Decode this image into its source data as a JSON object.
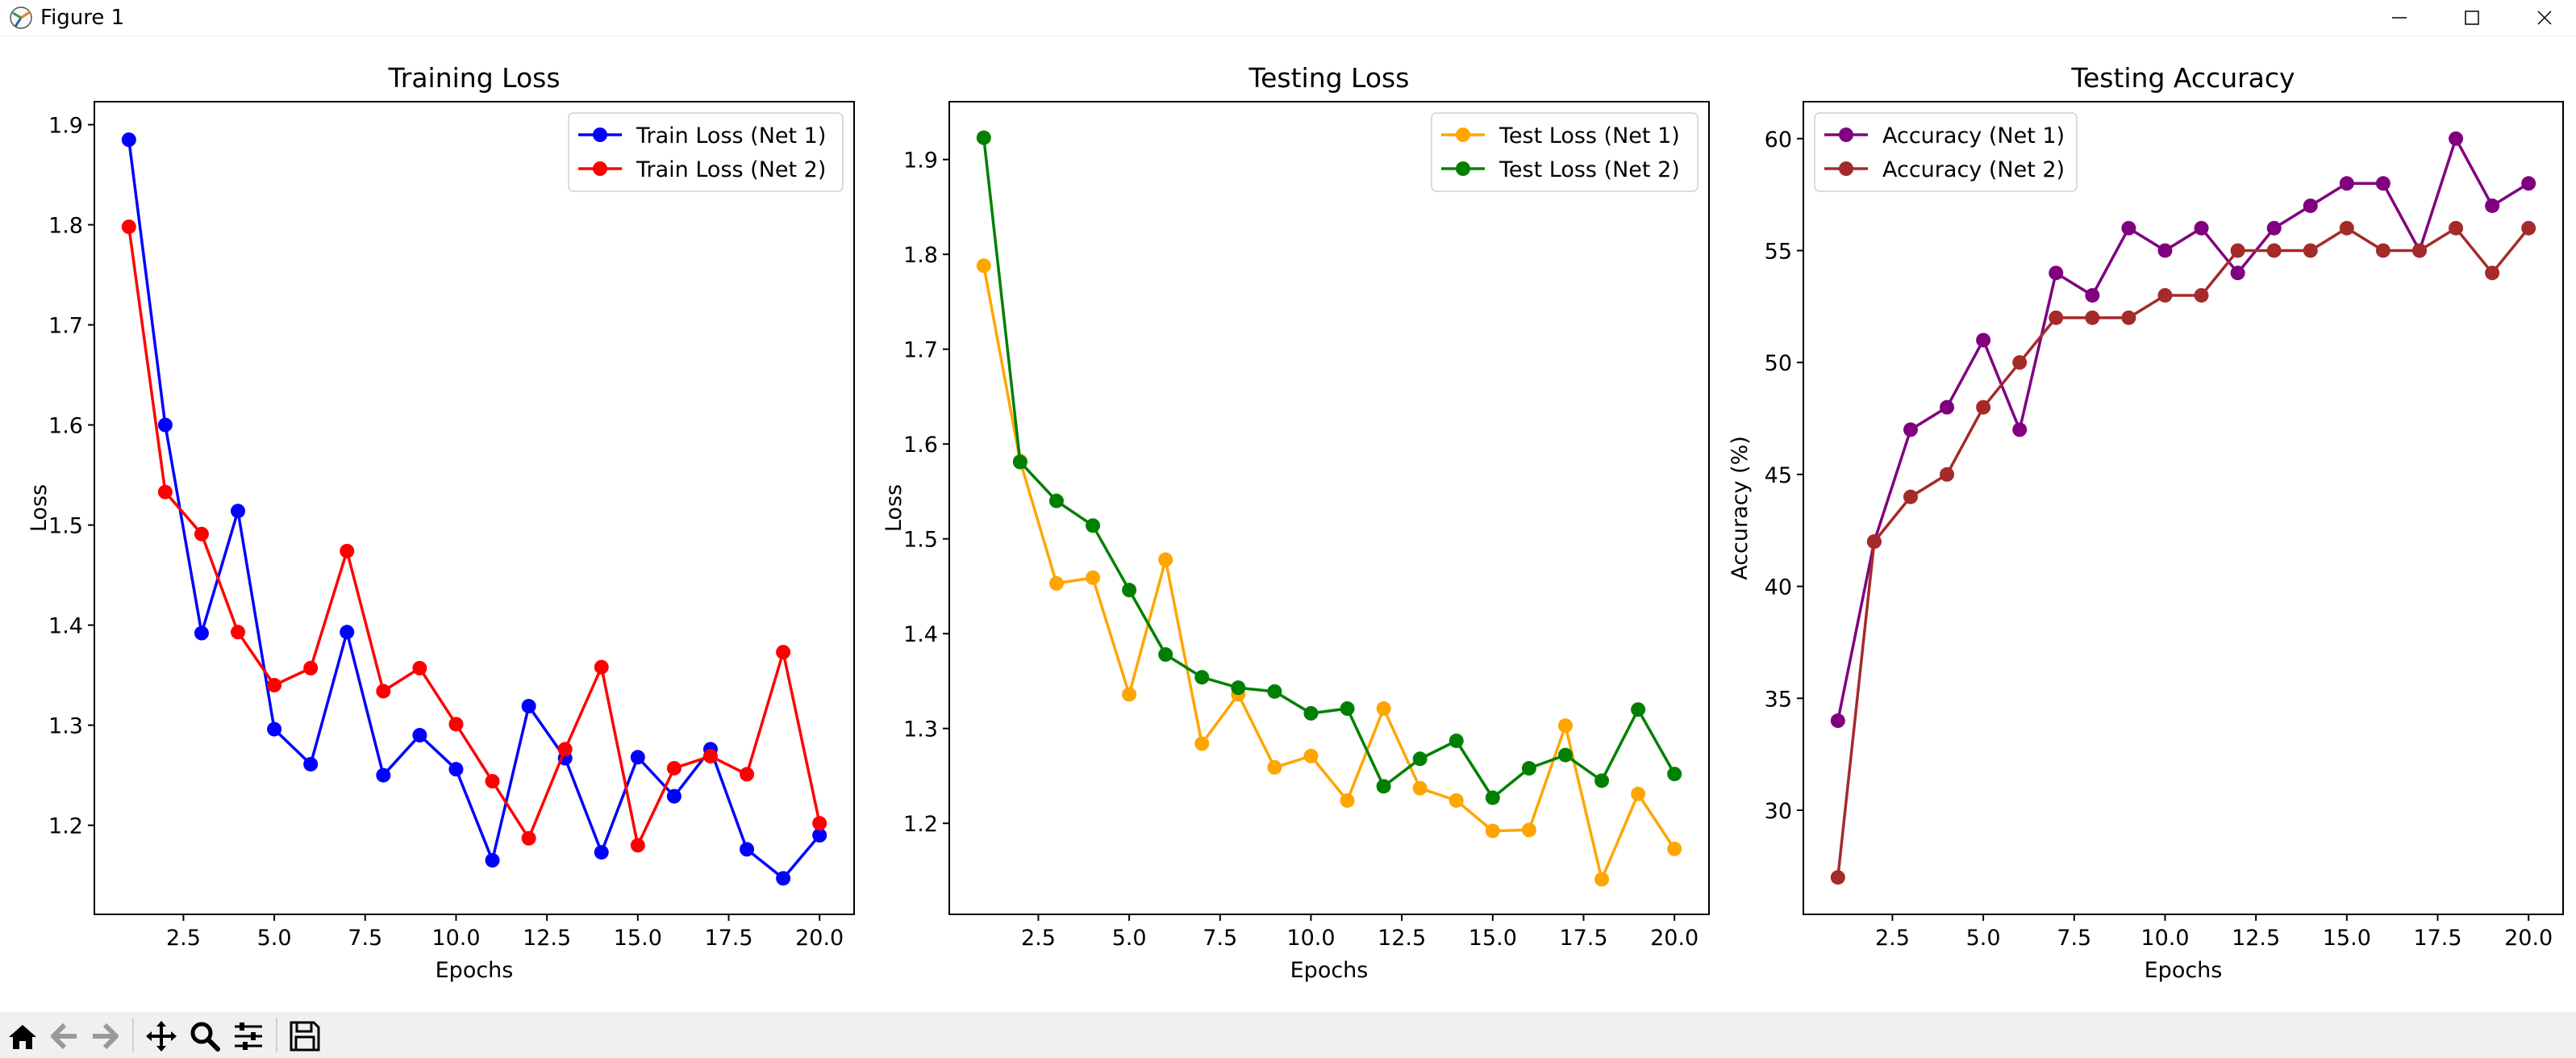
{
  "window": {
    "title": "Figure 1"
  },
  "toolbar": {
    "icons": [
      "home-icon",
      "back-icon",
      "forward-icon",
      "pan-icon",
      "zoom-icon",
      "configure-subplots-icon",
      "save-icon"
    ]
  },
  "chart_data": [
    {
      "type": "line",
      "title": "Training Loss",
      "xlabel": "Epochs",
      "ylabel": "Loss",
      "xlim": [
        0.05,
        20.95
      ],
      "ylim": [
        1.111,
        1.923
      ],
      "xticks": [
        2.5,
        5.0,
        7.5,
        10.0,
        12.5,
        15.0,
        17.5,
        20.0
      ],
      "xtick_labels": [
        "2.5",
        "5.0",
        "7.5",
        "10.0",
        "12.5",
        "15.0",
        "17.5",
        "20.0"
      ],
      "yticks": [
        1.2,
        1.3,
        1.4,
        1.5,
        1.6,
        1.7,
        1.8,
        1.9
      ],
      "ytick_labels": [
        "1.2",
        "1.3",
        "1.4",
        "1.5",
        "1.6",
        "1.7",
        "1.8",
        "1.9"
      ],
      "legend_position": "upper right",
      "x": [
        1,
        2,
        3,
        4,
        5,
        6,
        7,
        8,
        9,
        10,
        11,
        12,
        13,
        14,
        15,
        16,
        17,
        18,
        19,
        20
      ],
      "series": [
        {
          "name": "Train Loss (Net 1)",
          "color": "#0000ff",
          "values": [
            1.885,
            1.6,
            1.392,
            1.514,
            1.296,
            1.261,
            1.393,
            1.25,
            1.29,
            1.256,
            1.165,
            1.319,
            1.267,
            1.173,
            1.268,
            1.229,
            1.276,
            1.176,
            1.147,
            1.19
          ]
        },
        {
          "name": "Train Loss (Net 2)",
          "color": "#ff0000",
          "values": [
            1.798,
            1.533,
            1.491,
            1.393,
            1.34,
            1.357,
            1.474,
            1.334,
            1.357,
            1.301,
            1.244,
            1.187,
            1.276,
            1.358,
            1.18,
            1.257,
            1.269,
            1.251,
            1.373,
            1.202
          ]
        }
      ]
    },
    {
      "type": "line",
      "title": "Testing Loss",
      "xlabel": "Epochs",
      "ylabel": "Loss",
      "xlim": [
        0.05,
        20.95
      ],
      "ylim": [
        1.104,
        1.961
      ],
      "xticks": [
        2.5,
        5.0,
        7.5,
        10.0,
        12.5,
        15.0,
        17.5,
        20.0
      ],
      "xtick_labels": [
        "2.5",
        "5.0",
        "7.5",
        "10.0",
        "12.5",
        "15.0",
        "17.5",
        "20.0"
      ],
      "yticks": [
        1.2,
        1.3,
        1.4,
        1.5,
        1.6,
        1.7,
        1.8,
        1.9
      ],
      "ytick_labels": [
        "1.2",
        "1.3",
        "1.4",
        "1.5",
        "1.6",
        "1.7",
        "1.8",
        "1.9"
      ],
      "legend_position": "upper right",
      "x": [
        1,
        2,
        3,
        4,
        5,
        6,
        7,
        8,
        9,
        10,
        11,
        12,
        13,
        14,
        15,
        16,
        17,
        18,
        19,
        20
      ],
      "series": [
        {
          "name": "Test Loss (Net 1)",
          "color": "#ffa500",
          "values": [
            1.788,
            1.582,
            1.453,
            1.459,
            1.336,
            1.478,
            1.284,
            1.336,
            1.259,
            1.271,
            1.224,
            1.321,
            1.237,
            1.224,
            1.192,
            1.193,
            1.303,
            1.141,
            1.231,
            1.173
          ]
        },
        {
          "name": "Test Loss (Net 2)",
          "color": "#008000",
          "values": [
            1.923,
            1.581,
            1.54,
            1.514,
            1.446,
            1.378,
            1.354,
            1.343,
            1.339,
            1.316,
            1.321,
            1.239,
            1.268,
            1.287,
            1.227,
            1.258,
            1.272,
            1.245,
            1.32,
            1.252
          ]
        }
      ]
    },
    {
      "type": "line",
      "title": "Testing Accuracy",
      "xlabel": "Epochs",
      "ylabel": "Accuracy (%)",
      "xlim": [
        0.05,
        20.95
      ],
      "ylim": [
        25.35,
        61.65
      ],
      "xticks": [
        2.5,
        5.0,
        7.5,
        10.0,
        12.5,
        15.0,
        17.5,
        20.0
      ],
      "xtick_labels": [
        "2.5",
        "5.0",
        "7.5",
        "10.0",
        "12.5",
        "15.0",
        "17.5",
        "20.0"
      ],
      "yticks": [
        30,
        35,
        40,
        45,
        50,
        55,
        60
      ],
      "ytick_labels": [
        "30",
        "35",
        "40",
        "45",
        "50",
        "55",
        "60"
      ],
      "legend_position": "upper left",
      "x": [
        1,
        2,
        3,
        4,
        5,
        6,
        7,
        8,
        9,
        10,
        11,
        12,
        13,
        14,
        15,
        16,
        17,
        18,
        19,
        20
      ],
      "series": [
        {
          "name": "Accuracy (Net 1)",
          "color": "#800080",
          "values": [
            34,
            42,
            47,
            48,
            51,
            47,
            54,
            53,
            56,
            55,
            56,
            54,
            56,
            57,
            58,
            58,
            55,
            60,
            57,
            58
          ]
        },
        {
          "name": "Accuracy (Net 2)",
          "color": "#a52a2a",
          "values": [
            27,
            42,
            44,
            45,
            48,
            50,
            52,
            52,
            52,
            53,
            53,
            55,
            55,
            55,
            56,
            55,
            55,
            56,
            54,
            56
          ]
        }
      ]
    }
  ]
}
